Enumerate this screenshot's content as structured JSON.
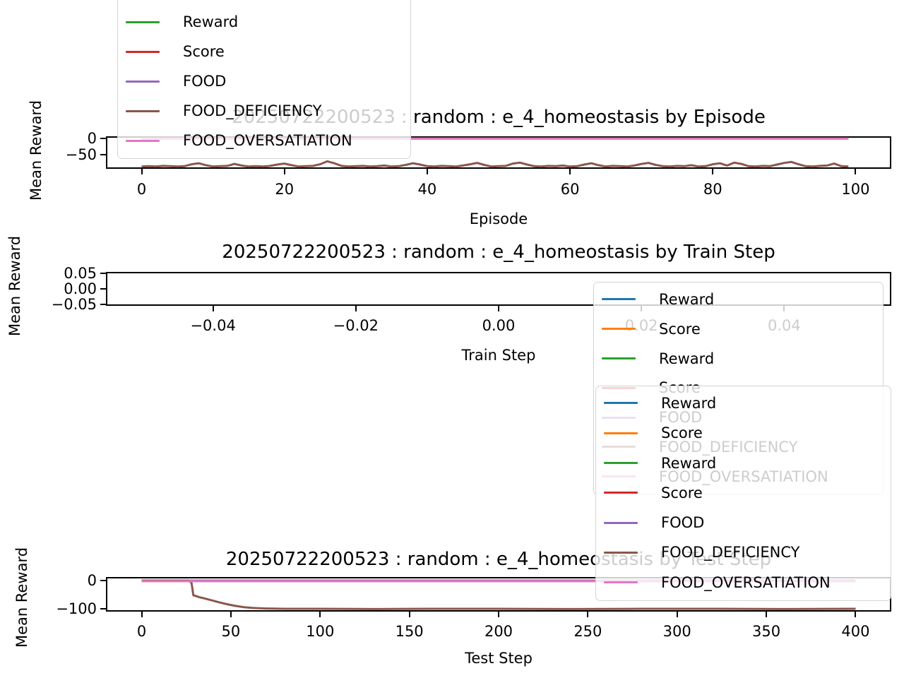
{
  "figure": {
    "background": "#ffffff",
    "kind": "matplotlib-style line plot figure, 3 stacked subplots"
  },
  "palette": {
    "blue": "#1f77b4",
    "orange": "#ff7f0e",
    "green": "#2ca02c",
    "red": "#d62728",
    "purple": "#9467bd",
    "brown": "#8c564b",
    "pink": "#e377c2",
    "axis": "#000000",
    "legend_edge": "#d4d4d4"
  },
  "chart_data": [
    {
      "type": "line",
      "title": "20250722200523 : random : e_4_homeostasis by Episode",
      "xlabel": "Episode",
      "ylabel": "Mean Reward",
      "xlim": [
        -5,
        105
      ],
      "ylim": [
        -93,
        7
      ],
      "xtick_values": [
        0,
        20,
        40,
        60,
        80,
        100
      ],
      "xtick_labels": [
        "0",
        "20",
        "40",
        "60",
        "80",
        "100"
      ],
      "ytick_values": [
        0,
        -50
      ],
      "ytick_labels": [
        "0",
        "−50"
      ],
      "grid": false,
      "legend": {
        "position": "upper left, overflowing above figure top (first two rows clipped)",
        "cut_off_top": true,
        "items": [
          {
            "label": "Reward",
            "color": "#1f77b4"
          },
          {
            "label": "Score",
            "color": "#ff7f0e"
          },
          {
            "label": "Reward",
            "color": "#2ca02c"
          },
          {
            "label": "Score",
            "color": "#d62728"
          },
          {
            "label": "FOOD",
            "color": "#9467bd"
          },
          {
            "label": "FOOD_DEFICIENCY",
            "color": "#8c564b"
          },
          {
            "label": "FOOD_OVERSATIATION",
            "color": "#e377c2"
          }
        ]
      },
      "series": [
        {
          "name": "Reward",
          "color": "#1f77b4",
          "visible": false,
          "note": "hidden beneath other lines"
        },
        {
          "name": "Score",
          "color": "#ff7f0e",
          "visible": false,
          "note": "hidden beneath other lines"
        },
        {
          "name": "Reward",
          "color": "#2ca02c",
          "visible": false,
          "note": "hidden beneath FOOD_DEFICIENCY"
        },
        {
          "name": "Score",
          "color": "#d62728",
          "visible": false,
          "note": "hidden beneath FOOD_DEFICIENCY"
        },
        {
          "name": "FOOD",
          "color": "#9467bd",
          "flat_value": 0,
          "x_start": 0,
          "x_end": 99
        },
        {
          "name": "FOOD_DEFICIENCY",
          "color": "#8c564b",
          "x_start": 0,
          "x_step": 1,
          "values": [
            -86,
            -85,
            -86,
            -84,
            -85,
            -86,
            -85,
            -79,
            -76,
            -82,
            -86,
            -85,
            -84,
            -78,
            -83,
            -86,
            -85,
            -86,
            -84,
            -80,
            -77,
            -82,
            -86,
            -85,
            -84,
            -79,
            -70,
            -76,
            -84,
            -86,
            -85,
            -84,
            -86,
            -85,
            -83,
            -86,
            -85,
            -81,
            -76,
            -80,
            -85,
            -86,
            -84,
            -85,
            -86,
            -83,
            -79,
            -75,
            -81,
            -86,
            -85,
            -84,
            -77,
            -74,
            -80,
            -85,
            -86,
            -84,
            -85,
            -83,
            -86,
            -85,
            -80,
            -76,
            -82,
            -86,
            -84,
            -85,
            -86,
            -83,
            -78,
            -75,
            -81,
            -85,
            -86,
            -84,
            -85,
            -82,
            -86,
            -85,
            -79,
            -76,
            -83,
            -74,
            -78,
            -85,
            -86,
            -84,
            -85,
            -80,
            -75,
            -72,
            -79,
            -85,
            -86,
            -84,
            -83,
            -77,
            -85,
            -86
          ]
        },
        {
          "name": "FOOD_OVERSATIATION",
          "color": "#e377c2",
          "flat_value": 0,
          "x_start": 0,
          "x_end": 99
        }
      ]
    },
    {
      "type": "line",
      "title": "20250722200523 : random : e_4_homeostasis by Train Step",
      "xlabel": "Train Step",
      "ylabel": "Mean Reward",
      "xlim": [
        -0.055,
        0.055
      ],
      "ylim": [
        -0.055,
        0.055
      ],
      "xtick_values": [
        -0.04,
        -0.02,
        0.0,
        0.02,
        0.04
      ],
      "xtick_labels": [
        "−0.04",
        "−0.02",
        "0.00",
        "0.02",
        "0.04"
      ],
      "ytick_values": [
        0.05,
        0.0,
        -0.05
      ],
      "ytick_labels": [
        "0.05",
        "0.00",
        "−0.05"
      ],
      "grid": false,
      "empty_plot": true,
      "legend": {
        "position": "right, below axes, overlapping 0.02 and 0.04 tick labels",
        "items": [
          {
            "label": "Reward",
            "color": "#1f77b4"
          },
          {
            "label": "Score",
            "color": "#ff7f0e"
          },
          {
            "label": "Reward",
            "color": "#2ca02c"
          },
          {
            "label": "Score",
            "color": "#d62728"
          },
          {
            "label": "FOOD",
            "color": "#9467bd"
          },
          {
            "label": "FOOD_DEFICIENCY",
            "color": "#8c564b"
          },
          {
            "label": "FOOD_OVERSATIATION",
            "color": "#e377c2"
          }
        ]
      },
      "series": []
    },
    {
      "type": "line",
      "title": "20250722200523 : random : e_4_homeostasis by Test Step",
      "xlabel": "Test Step",
      "ylabel": "Mean Reward",
      "xlim": [
        -20,
        420
      ],
      "ylim": [
        -110,
        12.5
      ],
      "xtick_values": [
        0,
        50,
        100,
        150,
        200,
        250,
        300,
        350,
        400
      ],
      "xtick_labels": [
        "0",
        "50",
        "100",
        "150",
        "200",
        "250",
        "300",
        "350",
        "400"
      ],
      "ytick_values": [
        0,
        -100
      ],
      "ytick_labels": [
        "0",
        "−100"
      ],
      "grid": false,
      "legend": {
        "position": "right, above plot, overlapping middle-plot legend and this title",
        "items": [
          {
            "label": "Reward",
            "color": "#1f77b4"
          },
          {
            "label": "Score",
            "color": "#ff7f0e"
          },
          {
            "label": "Reward",
            "color": "#2ca02c"
          },
          {
            "label": "Score",
            "color": "#d62728"
          },
          {
            "label": "FOOD",
            "color": "#9467bd"
          },
          {
            "label": "FOOD_DEFICIENCY",
            "color": "#8c564b"
          },
          {
            "label": "FOOD_OVERSATIATION",
            "color": "#e377c2"
          }
        ]
      },
      "series": [
        {
          "name": "Reward",
          "color": "#1f77b4",
          "flat_value": 0,
          "x_start": 0,
          "x_end": 400
        },
        {
          "name": "Score",
          "color": "#ff7f0e",
          "flat_value": 0,
          "x_start": 0,
          "x_end": 400
        },
        {
          "name": "Reward",
          "color": "#2ca02c",
          "flat_value": 0,
          "x_start": 0,
          "x_end": 400
        },
        {
          "name": "Score",
          "color": "#d62728",
          "flat_value": 0,
          "x_start": 0,
          "x_end": 400
        },
        {
          "name": "FOOD",
          "color": "#9467bd",
          "flat_value": 0,
          "x_start": 0,
          "x_end": 400
        },
        {
          "name": "FOOD_DEFICIENCY",
          "color": "#8c564b",
          "x": [
            0,
            26,
            27,
            28,
            29,
            31,
            33,
            35,
            38,
            41,
            44,
            48,
            52,
            57,
            62,
            70,
            80,
            100,
            130,
            160,
            200,
            240,
            280,
            320,
            360,
            400
          ],
          "y": [
            0,
            0,
            -2,
            -10,
            -52,
            -56,
            -60,
            -63,
            -68,
            -73,
            -78,
            -84,
            -89,
            -94,
            -97,
            -99,
            -100,
            -100,
            -101,
            -100,
            -100,
            -101,
            -100,
            -100,
            -101,
            -100
          ]
        },
        {
          "name": "FOOD_OVERSATIATION",
          "color": "#e377c2",
          "flat_value": 0,
          "x_start": 0,
          "x_end": 400
        }
      ]
    }
  ]
}
